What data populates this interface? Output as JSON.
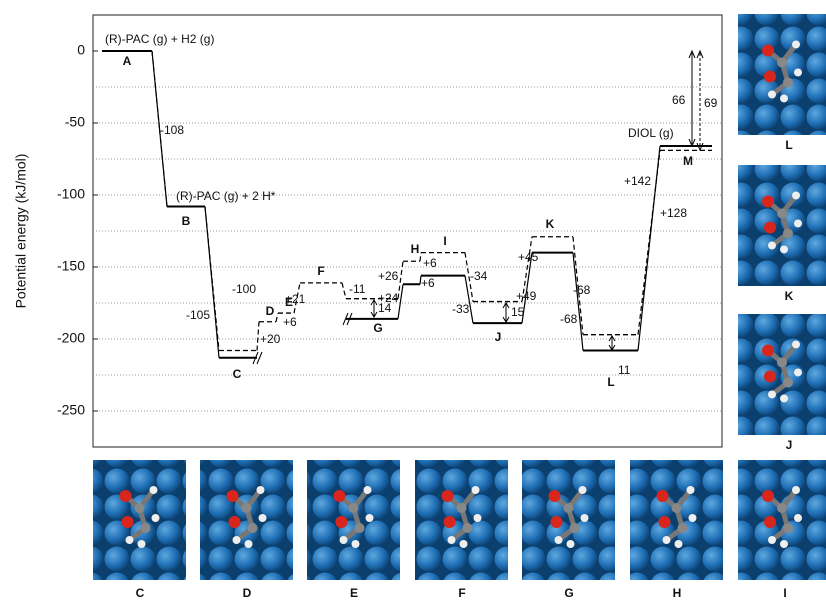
{
  "chart_data": {
    "type": "step",
    "ylabel": "Potential energy (kJ/mol)",
    "ylim": [
      -275,
      25
    ],
    "yticks": [
      0,
      -50,
      -100,
      -150,
      -200,
      -250
    ],
    "grid_lines": [
      -25,
      -50,
      -75,
      -100,
      -125,
      -150,
      -175,
      -200,
      -225,
      -250
    ],
    "categories": [
      "A",
      "B",
      "C",
      "D",
      "E",
      "F",
      "G",
      "H",
      "I",
      "J",
      "K",
      "L",
      "M"
    ],
    "series": [
      {
        "style": "solid",
        "color": "#000000",
        "values": [
          0,
          -108,
          -213,
          null,
          null,
          null,
          -186,
          -162,
          -156,
          -189,
          -140,
          -208,
          -66
        ]
      },
      {
        "style": "dashed",
        "color": "#000000",
        "values": [
          0,
          -108,
          -208,
          -188,
          -182,
          -161,
          -172,
          -146,
          -140,
          -174,
          -129,
          -197,
          -69
        ]
      }
    ],
    "state_labels": [
      "(R)-PAC (g) + H2 (g)",
      "(R)-PAC (g) + 2 H*",
      "DIOL (g)"
    ],
    "annotations": [
      "-108",
      "-105",
      "-100",
      "+20",
      "+6",
      "+21",
      "-11",
      "14",
      "+24",
      "+26",
      "+6",
      "+6",
      "-34",
      "-33",
      "15",
      "+49",
      "+45",
      "-68",
      "-68",
      "11",
      "+142",
      "+128",
      "66",
      "69"
    ]
  },
  "panels": {
    "bottom": [
      "C",
      "D",
      "E",
      "F",
      "G",
      "H",
      "I"
    ],
    "right": [
      "L",
      "K",
      "J"
    ]
  }
}
